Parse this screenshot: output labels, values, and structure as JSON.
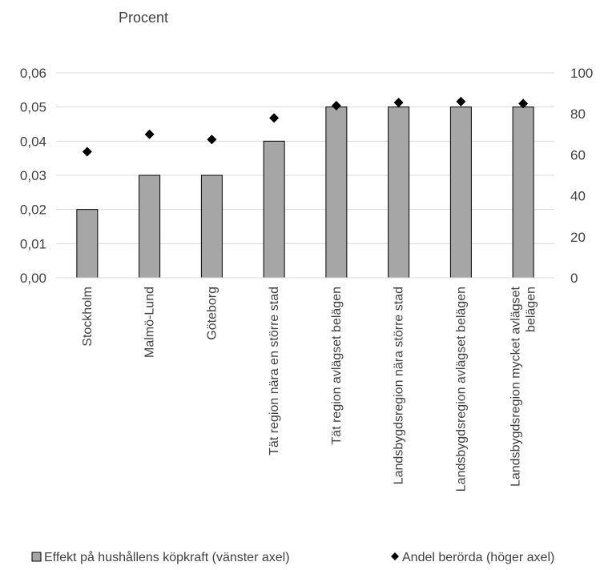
{
  "chart_data": {
    "type": "bar",
    "unit_label": "Procent",
    "categories": [
      "Stockholm",
      "Malmö-Lund",
      "Göteborg",
      "Tät region nära en större stad",
      "Tät region avlägset belägen",
      "Landsbygdsregion nära större stad",
      "Landsbygdsregion avlägset belägen",
      "Landsbygdsregion mycket avlägset belägen"
    ],
    "series": [
      {
        "name": "Effekt på hushållens köpkraft (vänster axel)",
        "type": "bar",
        "axis": "left",
        "color": "#a6a6a6",
        "values": [
          0.02,
          0.03,
          0.03,
          0.04,
          0.05,
          0.05,
          0.05,
          0.05
        ]
      },
      {
        "name": "Andel berörda (höger axel)",
        "type": "scatter",
        "axis": "right",
        "marker": "diamond",
        "color": "#000000",
        "values": [
          61.5,
          70,
          67.5,
          78,
          84,
          85.5,
          86,
          85
        ]
      }
    ],
    "y_left": {
      "lim": [
        0,
        0.06
      ],
      "ticks": [
        "0,00",
        "0,01",
        "0,02",
        "0,03",
        "0,04",
        "0,05",
        "0,06"
      ]
    },
    "y_right": {
      "lim": [
        0,
        100
      ],
      "ticks": [
        "0",
        "20",
        "40",
        "60",
        "80",
        "100"
      ]
    },
    "grid": true,
    "legend_position": "bottom"
  }
}
